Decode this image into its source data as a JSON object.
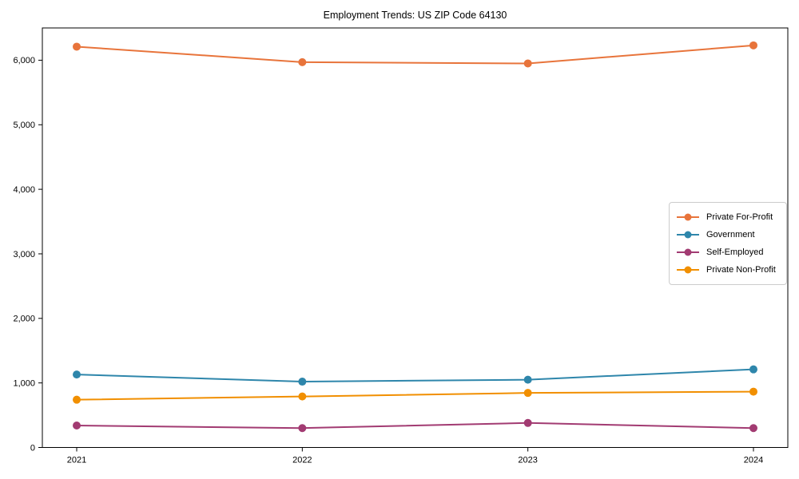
{
  "chart_data": {
    "type": "line",
    "title": "Employment Trends: US ZIP Code 64130",
    "categories": [
      "2021",
      "2022",
      "2023",
      "2024"
    ],
    "series": [
      {
        "name": "Private For-Profit",
        "color": "#E8743B",
        "values": [
          6210,
          5970,
          5950,
          6230
        ]
      },
      {
        "name": "Government",
        "color": "#2E86AB",
        "values": [
          1130,
          1020,
          1050,
          1210
        ]
      },
      {
        "name": "Self-Employed",
        "color": "#A23B72",
        "values": [
          340,
          300,
          380,
          300
        ]
      },
      {
        "name": "Private Non-Profit",
        "color": "#F18F01",
        "values": [
          740,
          790,
          845,
          865
        ]
      }
    ],
    "xlabel": "",
    "ylabel": "",
    "ylim": [
      0,
      6500
    ],
    "yticks": [
      0,
      1000,
      2000,
      3000,
      4000,
      5000,
      6000
    ],
    "ytick_labels": [
      "0",
      "1,000",
      "2,000",
      "3,000",
      "4,000",
      "5,000",
      "6,000"
    ],
    "grid": false,
    "legend_position": "center right",
    "axis_color": "#000000",
    "tick_label_color": "#000000"
  }
}
